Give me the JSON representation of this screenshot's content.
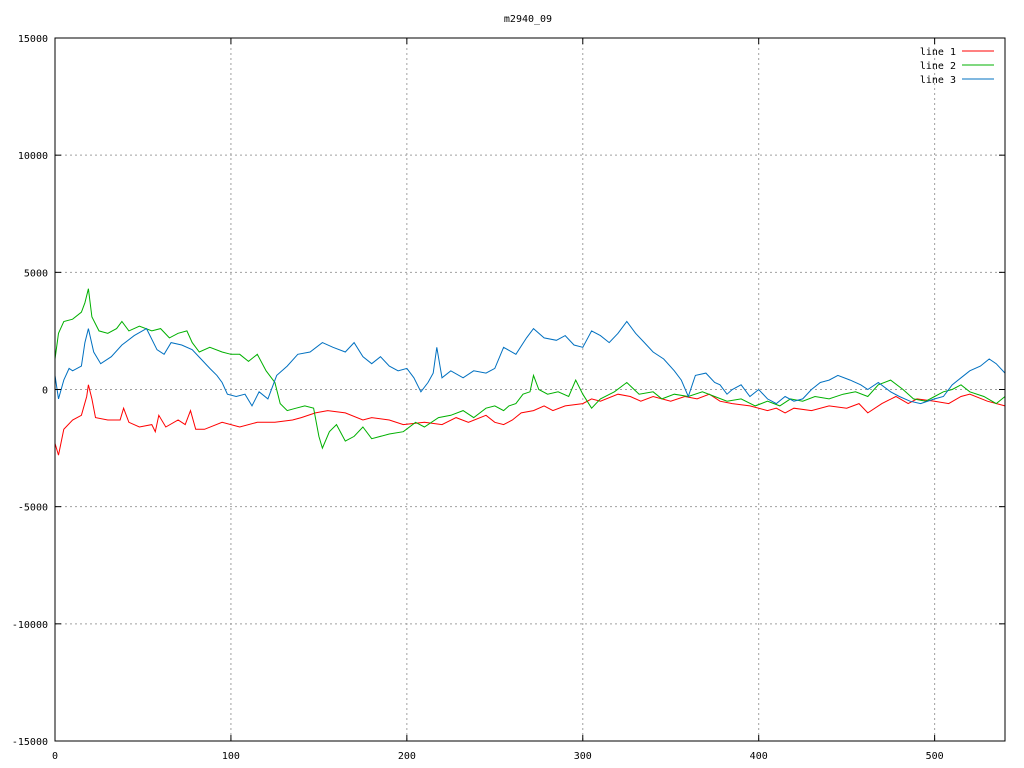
{
  "chart_data": {
    "type": "line",
    "title": "m2940_09",
    "xlim": [
      0,
      540
    ],
    "ylim": [
      -15000,
      15000
    ],
    "x_ticks": [
      0,
      100,
      200,
      300,
      400,
      500
    ],
    "y_ticks": [
      -15000,
      -10000,
      -5000,
      0,
      5000,
      10000,
      15000
    ],
    "grid": true,
    "legend_position": "top-right",
    "series": [
      {
        "name": "line 1",
        "color": "#ff0000",
        "points": [
          [
            0,
            -2300
          ],
          [
            2,
            -2800
          ],
          [
            5,
            -1700
          ],
          [
            10,
            -1300
          ],
          [
            15,
            -1100
          ],
          [
            18,
            -300
          ],
          [
            19,
            200
          ],
          [
            21,
            -400
          ],
          [
            23,
            -1200
          ],
          [
            30,
            -1300
          ],
          [
            37,
            -1300
          ],
          [
            39,
            -800
          ],
          [
            42,
            -1400
          ],
          [
            48,
            -1600
          ],
          [
            55,
            -1500
          ],
          [
            57,
            -1800
          ],
          [
            59,
            -1100
          ],
          [
            63,
            -1600
          ],
          [
            70,
            -1300
          ],
          [
            74,
            -1500
          ],
          [
            77,
            -900
          ],
          [
            80,
            -1700
          ],
          [
            85,
            -1700
          ],
          [
            95,
            -1400
          ],
          [
            105,
            -1600
          ],
          [
            115,
            -1400
          ],
          [
            125,
            -1400
          ],
          [
            135,
            -1300
          ],
          [
            140,
            -1200
          ],
          [
            148,
            -1000
          ],
          [
            155,
            -900
          ],
          [
            165,
            -1000
          ],
          [
            175,
            -1300
          ],
          [
            180,
            -1200
          ],
          [
            190,
            -1300
          ],
          [
            198,
            -1500
          ],
          [
            210,
            -1400
          ],
          [
            220,
            -1500
          ],
          [
            228,
            -1200
          ],
          [
            235,
            -1400
          ],
          [
            245,
            -1100
          ],
          [
            250,
            -1400
          ],
          [
            255,
            -1500
          ],
          [
            260,
            -1300
          ],
          [
            265,
            -1000
          ],
          [
            272,
            -900
          ],
          [
            278,
            -700
          ],
          [
            283,
            -900
          ],
          [
            290,
            -700
          ],
          [
            300,
            -600
          ],
          [
            305,
            -400
          ],
          [
            310,
            -500
          ],
          [
            320,
            -200
          ],
          [
            327,
            -300
          ],
          [
            333,
            -500
          ],
          [
            340,
            -300
          ],
          [
            350,
            -500
          ],
          [
            358,
            -300
          ],
          [
            365,
            -400
          ],
          [
            372,
            -200
          ],
          [
            378,
            -500
          ],
          [
            385,
            -600
          ],
          [
            395,
            -700
          ],
          [
            405,
            -900
          ],
          [
            410,
            -800
          ],
          [
            415,
            -1000
          ],
          [
            420,
            -800
          ],
          [
            430,
            -900
          ],
          [
            440,
            -700
          ],
          [
            450,
            -800
          ],
          [
            457,
            -600
          ],
          [
            462,
            -1000
          ],
          [
            470,
            -600
          ],
          [
            478,
            -300
          ],
          [
            485,
            -600
          ],
          [
            490,
            -400
          ],
          [
            500,
            -500
          ],
          [
            508,
            -600
          ],
          [
            515,
            -300
          ],
          [
            520,
            -200
          ],
          [
            530,
            -500
          ],
          [
            540,
            -700
          ]
        ]
      },
      {
        "name": "line 2",
        "color": "#00b000",
        "points": [
          [
            0,
            1300
          ],
          [
            2,
            2400
          ],
          [
            5,
            2900
          ],
          [
            10,
            3000
          ],
          [
            15,
            3300
          ],
          [
            17,
            3700
          ],
          [
            19,
            4300
          ],
          [
            21,
            3100
          ],
          [
            25,
            2500
          ],
          [
            30,
            2400
          ],
          [
            35,
            2600
          ],
          [
            38,
            2900
          ],
          [
            42,
            2500
          ],
          [
            48,
            2700
          ],
          [
            55,
            2500
          ],
          [
            60,
            2600
          ],
          [
            65,
            2200
          ],
          [
            70,
            2400
          ],
          [
            75,
            2500
          ],
          [
            78,
            2000
          ],
          [
            82,
            1600
          ],
          [
            88,
            1800
          ],
          [
            95,
            1600
          ],
          [
            100,
            1500
          ],
          [
            105,
            1500
          ],
          [
            110,
            1200
          ],
          [
            115,
            1500
          ],
          [
            120,
            800
          ],
          [
            125,
            300
          ],
          [
            128,
            -600
          ],
          [
            132,
            -900
          ],
          [
            137,
            -800
          ],
          [
            142,
            -700
          ],
          [
            147,
            -800
          ],
          [
            150,
            -2000
          ],
          [
            152,
            -2500
          ],
          [
            156,
            -1800
          ],
          [
            160,
            -1500
          ],
          [
            165,
            -2200
          ],
          [
            170,
            -2000
          ],
          [
            175,
            -1600
          ],
          [
            180,
            -2100
          ],
          [
            190,
            -1900
          ],
          [
            198,
            -1800
          ],
          [
            205,
            -1400
          ],
          [
            210,
            -1600
          ],
          [
            218,
            -1200
          ],
          [
            225,
            -1100
          ],
          [
            232,
            -900
          ],
          [
            238,
            -1200
          ],
          [
            245,
            -800
          ],
          [
            250,
            -700
          ],
          [
            255,
            -900
          ],
          [
            258,
            -700
          ],
          [
            262,
            -600
          ],
          [
            266,
            -200
          ],
          [
            270,
            -100
          ],
          [
            272,
            600
          ],
          [
            275,
            0
          ],
          [
            280,
            -200
          ],
          [
            286,
            -100
          ],
          [
            292,
            -300
          ],
          [
            296,
            400
          ],
          [
            300,
            -200
          ],
          [
            305,
            -800
          ],
          [
            310,
            -400
          ],
          [
            318,
            -100
          ],
          [
            325,
            300
          ],
          [
            332,
            -200
          ],
          [
            340,
            -100
          ],
          [
            345,
            -400
          ],
          [
            352,
            -200
          ],
          [
            360,
            -300
          ],
          [
            368,
            -100
          ],
          [
            375,
            -300
          ],
          [
            382,
            -500
          ],
          [
            390,
            -400
          ],
          [
            398,
            -700
          ],
          [
            405,
            -500
          ],
          [
            412,
            -700
          ],
          [
            418,
            -400
          ],
          [
            425,
            -500
          ],
          [
            432,
            -300
          ],
          [
            440,
            -400
          ],
          [
            448,
            -200
          ],
          [
            455,
            -100
          ],
          [
            462,
            -300
          ],
          [
            468,
            200
          ],
          [
            475,
            400
          ],
          [
            482,
            0
          ],
          [
            488,
            -400
          ],
          [
            495,
            -500
          ],
          [
            500,
            -300
          ],
          [
            505,
            -100
          ],
          [
            510,
            0
          ],
          [
            515,
            200
          ],
          [
            520,
            -100
          ],
          [
            528,
            -300
          ],
          [
            535,
            -600
          ],
          [
            540,
            -300
          ]
        ]
      },
      {
        "name": "line 3",
        "color": "#0070c0",
        "points": [
          [
            0,
            600
          ],
          [
            2,
            -400
          ],
          [
            5,
            400
          ],
          [
            8,
            900
          ],
          [
            10,
            800
          ],
          [
            15,
            1000
          ],
          [
            17,
            2000
          ],
          [
            19,
            2600
          ],
          [
            22,
            1600
          ],
          [
            26,
            1100
          ],
          [
            32,
            1400
          ],
          [
            38,
            1900
          ],
          [
            45,
            2300
          ],
          [
            52,
            2600
          ],
          [
            58,
            1700
          ],
          [
            62,
            1500
          ],
          [
            66,
            2000
          ],
          [
            72,
            1900
          ],
          [
            78,
            1700
          ],
          [
            83,
            1300
          ],
          [
            88,
            900
          ],
          [
            92,
            600
          ],
          [
            95,
            300
          ],
          [
            98,
            -200
          ],
          [
            103,
            -300
          ],
          [
            108,
            -200
          ],
          [
            112,
            -700
          ],
          [
            116,
            -100
          ],
          [
            121,
            -400
          ],
          [
            126,
            600
          ],
          [
            132,
            1000
          ],
          [
            138,
            1500
          ],
          [
            145,
            1600
          ],
          [
            152,
            2000
          ],
          [
            158,
            1800
          ],
          [
            165,
            1600
          ],
          [
            170,
            2000
          ],
          [
            175,
            1400
          ],
          [
            180,
            1100
          ],
          [
            185,
            1400
          ],
          [
            190,
            1000
          ],
          [
            195,
            800
          ],
          [
            200,
            900
          ],
          [
            204,
            500
          ],
          [
            208,
            -100
          ],
          [
            212,
            300
          ],
          [
            215,
            700
          ],
          [
            217,
            1800
          ],
          [
            220,
            500
          ],
          [
            225,
            800
          ],
          [
            232,
            500
          ],
          [
            238,
            800
          ],
          [
            245,
            700
          ],
          [
            250,
            900
          ],
          [
            255,
            1800
          ],
          [
            262,
            1500
          ],
          [
            268,
            2200
          ],
          [
            272,
            2600
          ],
          [
            278,
            2200
          ],
          [
            285,
            2100
          ],
          [
            290,
            2300
          ],
          [
            295,
            1900
          ],
          [
            300,
            1800
          ],
          [
            305,
            2500
          ],
          [
            310,
            2300
          ],
          [
            315,
            2000
          ],
          [
            320,
            2400
          ],
          [
            325,
            2900
          ],
          [
            330,
            2400
          ],
          [
            335,
            2000
          ],
          [
            340,
            1600
          ],
          [
            346,
            1300
          ],
          [
            352,
            800
          ],
          [
            356,
            400
          ],
          [
            360,
            -300
          ],
          [
            364,
            600
          ],
          [
            370,
            700
          ],
          [
            375,
            300
          ],
          [
            378,
            200
          ],
          [
            382,
            -200
          ],
          [
            385,
            0
          ],
          [
            390,
            200
          ],
          [
            395,
            -300
          ],
          [
            400,
            0
          ],
          [
            405,
            -400
          ],
          [
            410,
            -600
          ],
          [
            415,
            -300
          ],
          [
            420,
            -500
          ],
          [
            425,
            -400
          ],
          [
            430,
            0
          ],
          [
            435,
            300
          ],
          [
            440,
            400
          ],
          [
            445,
            600
          ],
          [
            452,
            400
          ],
          [
            458,
            200
          ],
          [
            462,
            0
          ],
          [
            468,
            300
          ],
          [
            475,
            -100
          ],
          [
            480,
            -300
          ],
          [
            486,
            -500
          ],
          [
            492,
            -600
          ],
          [
            500,
            -400
          ],
          [
            505,
            -300
          ],
          [
            510,
            200
          ],
          [
            515,
            500
          ],
          [
            520,
            800
          ],
          [
            526,
            1000
          ],
          [
            531,
            1300
          ],
          [
            535,
            1100
          ],
          [
            540,
            700
          ]
        ]
      }
    ]
  }
}
